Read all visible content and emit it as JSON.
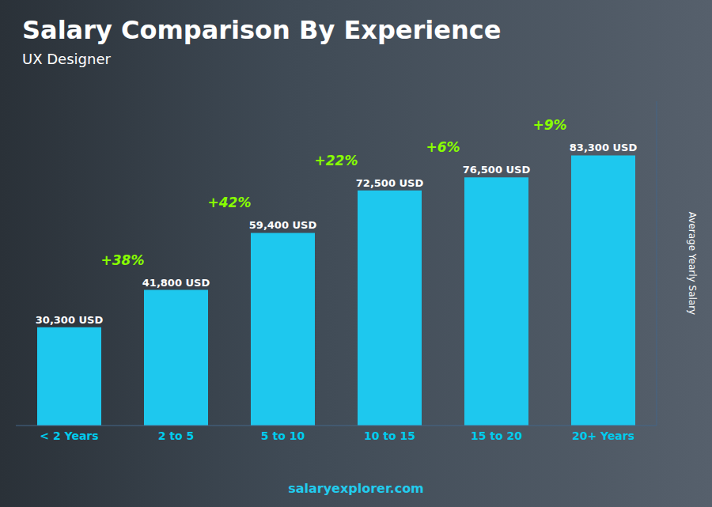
{
  "chart_data": {
    "type": "bar",
    "title": "Salary Comparison By Experience",
    "subtitle": "UX Designer",
    "ylabel": "Average Yearly Salary",
    "categories": [
      "< 2 Years",
      "2 to 5",
      "5 to 10",
      "10 to 15",
      "15 to 20",
      "20+ Years"
    ],
    "values": [
      30300,
      41800,
      59400,
      72500,
      76500,
      83300
    ],
    "value_labels": [
      "30,300 USD",
      "41,800 USD",
      "59,400 USD",
      "72,500 USD",
      "76,500 USD",
      "83,300 USD"
    ],
    "data_labels": true,
    "annotations": [
      "+38%",
      "+42%",
      "+22%",
      "+6%",
      "+9%"
    ],
    "color": "#1EC8EE",
    "ylim": [
      0,
      100000
    ],
    "tick_labels": "x",
    "grid": false,
    "footer": "salaryexplorer.com"
  }
}
